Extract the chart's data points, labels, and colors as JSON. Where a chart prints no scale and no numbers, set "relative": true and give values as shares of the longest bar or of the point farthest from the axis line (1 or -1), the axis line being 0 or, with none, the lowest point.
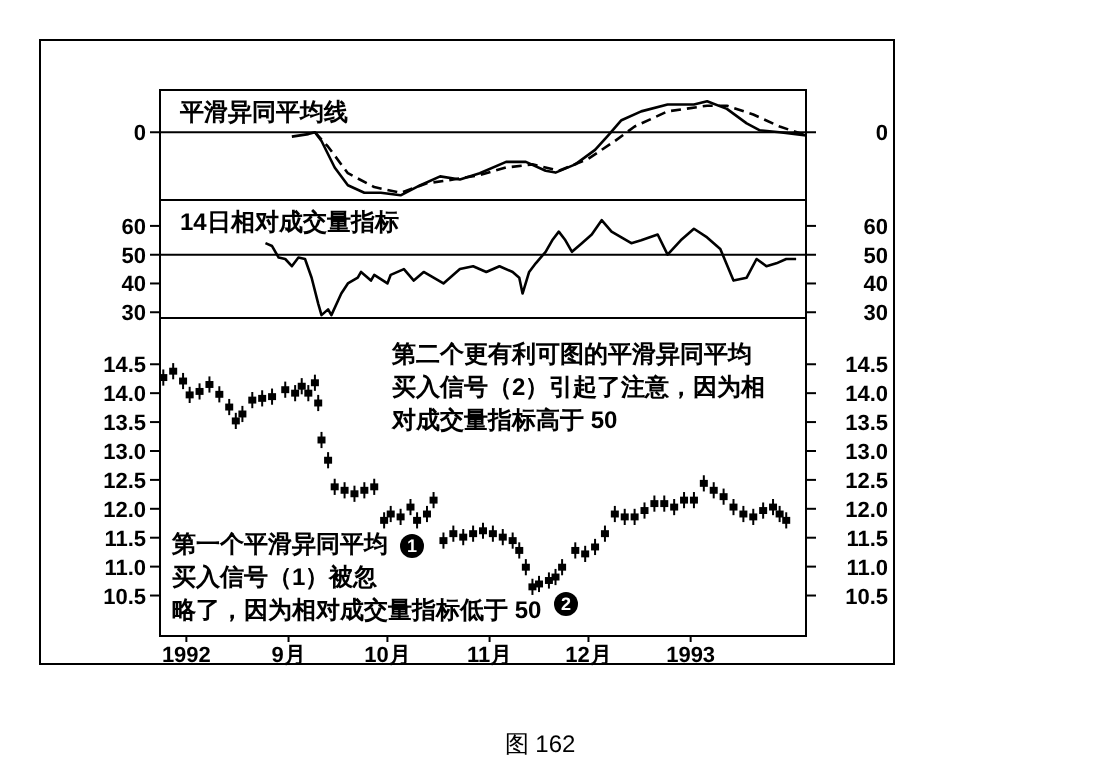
{
  "chart_data": [
    {
      "type": "line",
      "title": "平滑异同平均线",
      "relative": true,
      "xlim": [
        "1992-07-24",
        "1993-02-05"
      ],
      "tick_labels": false,
      "ref_lines": [
        {
          "axis": "y",
          "value": 0,
          "label": "0"
        }
      ],
      "series": [
        {
          "color": "#000000",
          "line_style": "solid",
          "x": [
            "1992-09-02",
            "1992-09-07",
            "1992-09-09",
            "1992-09-11",
            "1992-09-15",
            "1992-09-19",
            "1992-09-24",
            "1992-09-29",
            "1992-10-05",
            "1992-10-11",
            "1992-10-17",
            "1992-10-23",
            "1992-10-29",
            "1992-11-06",
            "1992-11-12",
            "1992-11-18",
            "1992-11-21",
            "1992-11-27",
            "1992-12-03",
            "1992-12-07",
            "1992-12-11",
            "1992-12-17",
            "1992-12-25",
            "1993-01-02",
            "1993-01-06",
            "1993-01-12",
            "1993-01-18",
            "1993-01-22",
            "1993-01-28",
            "1993-02-05"
          ],
          "values": [
            -0.07,
            -0.03,
            0,
            -0.14,
            -0.56,
            -0.84,
            -0.96,
            -0.96,
            -1,
            -0.84,
            -0.7,
            -0.75,
            -0.65,
            -0.47,
            -0.47,
            -0.61,
            -0.64,
            -0.51,
            -0.28,
            -0.05,
            0.19,
            0.33,
            0.44,
            0.44,
            0.49,
            0.37,
            0.14,
            0.03,
            0,
            -0.05
          ]
        },
        {
          "color": "#000000",
          "line_style": "dashed",
          "x": [
            "1992-09-09",
            "1992-09-13",
            "1992-09-19",
            "1992-09-27",
            "1992-10-05",
            "1992-10-13",
            "1992-10-21",
            "1992-10-29",
            "1992-11-06",
            "1992-11-14",
            "1992-11-22",
            "1992-12-01",
            "1992-12-09",
            "1992-12-15",
            "1992-12-25",
            "1993-01-06",
            "1993-01-12",
            "1993-01-20",
            "1993-01-28",
            "1993-02-05"
          ],
          "values": [
            0,
            -0.23,
            -0.65,
            -0.87,
            -0.96,
            -0.81,
            -0.75,
            -0.68,
            -0.56,
            -0.51,
            -0.61,
            -0.42,
            -0.14,
            0.09,
            0.33,
            0.42,
            0.42,
            0.28,
            0.09,
            -0.05
          ]
        }
      ]
    },
    {
      "type": "line",
      "title": "14日相对成交量指标",
      "xlim": [
        "1992-07-24",
        "1993-02-05"
      ],
      "ylim": [
        28,
        69
      ],
      "yticks": [
        30,
        40,
        50,
        60
      ],
      "y2lim": [
        28,
        69
      ],
      "y2ticks": [
        30,
        40,
        50,
        60
      ],
      "tick_labels": "y",
      "ref_lines": [
        {
          "axis": "y",
          "value": 50,
          "label": null
        }
      ],
      "series": [
        {
          "color": "#000000",
          "x": [
            "1992-08-25",
            "1992-08-27",
            "1992-08-29",
            "1992-08-31",
            "1992-09-02",
            "1992-09-04",
            "1992-09-06",
            "1992-09-08",
            "1992-09-10",
            "1992-09-11",
            "1992-09-13",
            "1992-09-14",
            "1992-09-16",
            "1992-09-17",
            "1992-09-19",
            "1992-09-22",
            "1992-09-23",
            "1992-09-26",
            "1992-09-27",
            "1992-10-01",
            "1992-10-02",
            "1992-10-06",
            "1992-10-09",
            "1992-10-12",
            "1992-10-15",
            "1992-10-18",
            "1992-10-23",
            "1992-10-27",
            "1992-10-31",
            "1992-11-04",
            "1992-11-08",
            "1992-11-10",
            "1992-11-11",
            "1992-11-13",
            "1992-11-15",
            "1992-11-18",
            "1992-11-20",
            "1992-11-22",
            "1992-11-24",
            "1992-11-26",
            "1992-11-29",
            "1992-12-02",
            "1992-12-05",
            "1992-12-08",
            "1992-12-11",
            "1992-12-14",
            "1992-12-17",
            "1992-12-22",
            "1992-12-25",
            "1992-12-29",
            "1993-01-02",
            "1993-01-06",
            "1993-01-10",
            "1993-01-14",
            "1993-01-18",
            "1993-01-21",
            "1993-01-24",
            "1993-01-27",
            "1993-01-30",
            "1993-02-02"
          ],
          "values": [
            54,
            53,
            49,
            48.5,
            46,
            49,
            48.5,
            42,
            33,
            29,
            31,
            29,
            34,
            36.5,
            40,
            42,
            44,
            41,
            43,
            40,
            43,
            45,
            41,
            44,
            42,
            40,
            45,
            46,
            44,
            46,
            44,
            42,
            36.5,
            44,
            47,
            51,
            55,
            58,
            55,
            51,
            54,
            57,
            62,
            58,
            56,
            54,
            55,
            57,
            50,
            55,
            59,
            56,
            52,
            41,
            42,
            48.5,
            46,
            47,
            48.5,
            48.5
          ]
        }
      ]
    },
    {
      "type": "candlestick",
      "xlim": [
        "1992-07-24",
        "1993-02-05"
      ],
      "ylim": [
        9.8,
        15.3
      ],
      "yticks": [
        10.5,
        {
          "value": 11,
          "label": "11.0"
        },
        11.5,
        {
          "value": 12,
          "label": "12.0"
        },
        12.5,
        {
          "value": 13,
          "label": "13.0"
        },
        13.5,
        {
          "value": 14,
          "label": "14.0"
        },
        14.5
      ],
      "y2lim": [
        9.8,
        15.3
      ],
      "y2ticks": [
        10.5,
        {
          "value": 11,
          "label": "11.0"
        },
        11.5,
        {
          "value": 12,
          "label": "12.0"
        },
        12.5,
        {
          "value": 13,
          "label": "13.0"
        },
        13.5,
        {
          "value": 14,
          "label": "14.0"
        },
        14.5
      ],
      "xticks": [
        {
          "value": "1992-08-01",
          "label": "1992"
        },
        {
          "value": "1992-09-01",
          "label": "9月"
        },
        {
          "value": "1992-10-01",
          "label": "10月"
        },
        {
          "value": "1992-11-01",
          "label": "11月"
        },
        {
          "value": "1992-12-01",
          "label": "12月"
        },
        {
          "value": "1993-01-01",
          "label": "1993"
        }
      ],
      "color": "#000000",
      "x": [
        "1992-07-25",
        "1992-07-28",
        "1992-07-31",
        "1992-08-02",
        "1992-08-05",
        "1992-08-08",
        "1992-08-11",
        "1992-08-14",
        "1992-08-16",
        "1992-08-18",
        "1992-08-21",
        "1992-08-24",
        "1992-08-27",
        "1992-08-31",
        "1992-09-03",
        "1992-09-05",
        "1992-09-07",
        "1992-09-09",
        "1992-09-10",
        "1992-09-11",
        "1992-09-13",
        "1992-09-15",
        "1992-09-18",
        "1992-09-21",
        "1992-09-24",
        "1992-09-27",
        "1992-09-30",
        "1992-10-02",
        "1992-10-05",
        "1992-10-08",
        "1992-10-10",
        "1992-10-13",
        "1992-10-15",
        "1992-10-18",
        "1992-10-21",
        "1992-10-24",
        "1992-10-27",
        "1992-10-30",
        "1992-11-02",
        "1992-11-05",
        "1992-11-08",
        "1992-11-10",
        "1992-11-12",
        "1992-11-14",
        "1992-11-16",
        "1992-11-19",
        "1992-11-21",
        "1992-11-23",
        "1992-11-27",
        "1992-11-30",
        "1992-12-03",
        "1992-12-06",
        "1992-12-09",
        "1992-12-12",
        "1992-12-15",
        "1992-12-18",
        "1992-12-21",
        "1992-12-24",
        "1992-12-27",
        "1992-12-30",
        "1993-01-02",
        "1993-01-05",
        "1993-01-08",
        "1993-01-11",
        "1993-01-14",
        "1993-01-17",
        "1993-01-20",
        "1993-01-23",
        "1993-01-26",
        "1993-01-28",
        "1993-01-30"
      ],
      "ohlc": [
        [
          14.33,
          14.41,
          14.13,
          14.21
        ],
        [
          14.44,
          14.52,
          14.24,
          14.32
        ],
        [
          14.27,
          14.35,
          14.07,
          14.15
        ],
        [
          14.03,
          14.11,
          13.83,
          13.91
        ],
        [
          14.09,
          14.17,
          13.89,
          13.97
        ],
        [
          14.21,
          14.29,
          14.01,
          14.09
        ],
        [
          14.04,
          14.12,
          13.84,
          13.92
        ],
        [
          13.82,
          13.9,
          13.62,
          13.7
        ],
        [
          13.58,
          13.66,
          13.38,
          13.46
        ],
        [
          13.7,
          13.78,
          13.5,
          13.58
        ],
        [
          13.94,
          14.02,
          13.74,
          13.82
        ],
        [
          13.97,
          14.05,
          13.77,
          13.85
        ],
        [
          14.0,
          14.08,
          13.8,
          13.88
        ],
        [
          14.12,
          14.2,
          13.92,
          14.0
        ],
        [
          14.06,
          14.14,
          13.86,
          13.94
        ],
        [
          14.18,
          14.26,
          13.98,
          14.06
        ],
        [
          14.06,
          14.14,
          13.86,
          13.94
        ],
        [
          14.24,
          14.32,
          14.04,
          14.12
        ],
        [
          13.89,
          13.97,
          13.69,
          13.77
        ],
        [
          13.25,
          13.33,
          13.05,
          13.13
        ],
        [
          12.9,
          12.98,
          12.7,
          12.78
        ],
        [
          12.44,
          12.52,
          12.24,
          12.32
        ],
        [
          12.38,
          12.46,
          12.18,
          12.26
        ],
        [
          12.32,
          12.4,
          12.12,
          12.2
        ],
        [
          12.38,
          12.46,
          12.18,
          12.26
        ],
        [
          12.44,
          12.52,
          12.24,
          12.32
        ],
        [
          11.86,
          11.94,
          11.66,
          11.74
        ],
        [
          11.97,
          12.05,
          11.77,
          11.85
        ],
        [
          11.92,
          12.0,
          11.72,
          11.8
        ],
        [
          12.09,
          12.17,
          11.89,
          11.97
        ],
        [
          11.86,
          11.94,
          11.66,
          11.74
        ],
        [
          11.97,
          12.05,
          11.77,
          11.85
        ],
        [
          12.21,
          12.29,
          12.01,
          12.09
        ],
        [
          11.51,
          11.59,
          11.31,
          11.39
        ],
        [
          11.63,
          11.71,
          11.43,
          11.51
        ],
        [
          11.57,
          11.65,
          11.37,
          11.45
        ],
        [
          11.63,
          11.71,
          11.43,
          11.51
        ],
        [
          11.68,
          11.76,
          11.48,
          11.56
        ],
        [
          11.63,
          11.71,
          11.43,
          11.51
        ],
        [
          11.57,
          11.65,
          11.37,
          11.45
        ],
        [
          11.51,
          11.59,
          11.31,
          11.39
        ],
        [
          11.34,
          11.42,
          11.14,
          11.22
        ],
        [
          11.05,
          11.13,
          10.85,
          10.93
        ],
        [
          10.71,
          10.79,
          10.51,
          10.59
        ],
        [
          10.76,
          10.84,
          10.56,
          10.64
        ],
        [
          10.82,
          10.9,
          10.62,
          10.7
        ],
        [
          10.88,
          10.96,
          10.68,
          10.76
        ],
        [
          11.05,
          11.13,
          10.85,
          10.93
        ],
        [
          11.34,
          11.42,
          11.14,
          11.22
        ],
        [
          11.28,
          11.36,
          11.08,
          11.16
        ],
        [
          11.4,
          11.48,
          11.2,
          11.28
        ],
        [
          11.63,
          11.71,
          11.43,
          11.51
        ],
        [
          11.97,
          12.05,
          11.77,
          11.85
        ],
        [
          11.92,
          12.0,
          11.72,
          11.8
        ],
        [
          11.92,
          12.0,
          11.72,
          11.8
        ],
        [
          12.03,
          12.11,
          11.83,
          11.91
        ],
        [
          12.15,
          12.23,
          11.95,
          12.03
        ],
        [
          12.15,
          12.23,
          11.95,
          12.03
        ],
        [
          12.09,
          12.17,
          11.89,
          11.97
        ],
        [
          12.21,
          12.29,
          12.01,
          12.09
        ],
        [
          12.21,
          12.29,
          12.01,
          12.09
        ],
        [
          12.5,
          12.58,
          12.3,
          12.38
        ],
        [
          12.38,
          12.46,
          12.18,
          12.26
        ],
        [
          12.27,
          12.35,
          12.07,
          12.15
        ],
        [
          12.09,
          12.17,
          11.89,
          11.97
        ],
        [
          11.97,
          12.05,
          11.77,
          11.85
        ],
        [
          11.92,
          12.0,
          11.72,
          11.8
        ],
        [
          12.03,
          12.11,
          11.83,
          11.91
        ],
        [
          12.09,
          12.17,
          11.89,
          11.97
        ],
        [
          11.97,
          12.05,
          11.77,
          11.85
        ],
        [
          11.86,
          11.94,
          11.66,
          11.74
        ]
      ],
      "annotations": [
        "第二个更有利可图的平滑异同平均买入信号（2）引起了注意，因为相对成交量指标高于 50",
        "第一个平滑异同平均买入信号（1）被忽略了，因为相对成交量指标低于 50",
        "1",
        "2",
        "图 162"
      ]
    }
  ]
}
